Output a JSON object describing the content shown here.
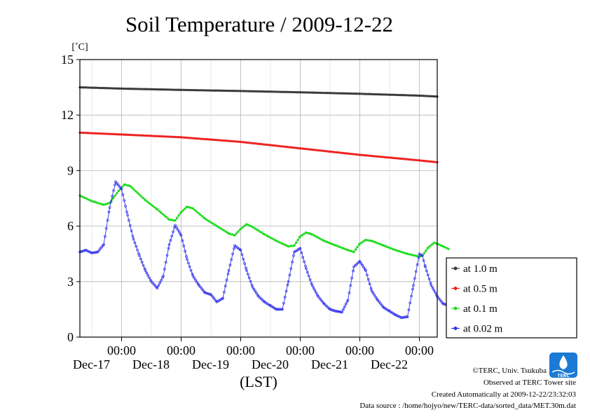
{
  "chart_data": {
    "type": "line",
    "title": "Soil Temperature / 2009-12-22",
    "y_unit": "[˚C]",
    "xlabel": "(LST)",
    "ylim": [
      0,
      15
    ],
    "yticks": [
      0,
      3,
      6,
      9,
      12,
      15
    ],
    "x_range_days": [
      -3.7,
      2.3
    ],
    "x_ticks": [
      {
        "time": "00:00",
        "date": "Dec-17",
        "day": -3
      },
      {
        "time": "00:00",
        "date": "Dec-18",
        "day": -2
      },
      {
        "time": "00:00",
        "date": "Dec-19",
        "day": -1
      },
      {
        "time": "00:00",
        "date": "Dec-20",
        "day": 0
      },
      {
        "time": "00:00",
        "date": "Dec-21",
        "day": 1
      },
      {
        "time": "00:00",
        "date": "Dec-22",
        "day": 2
      }
    ],
    "grid": true,
    "legend_position": "right",
    "series": [
      {
        "name": "at 1.0 m",
        "color": "#3a3a3a",
        "points": [
          [
            -3.7,
            13.5
          ],
          [
            -3.0,
            13.43
          ],
          [
            -2.0,
            13.36
          ],
          [
            -1.0,
            13.3
          ],
          [
            0.0,
            13.23
          ],
          [
            1.0,
            13.15
          ],
          [
            2.0,
            13.05
          ],
          [
            2.3,
            13.0
          ]
        ]
      },
      {
        "name": "at 0.5 m",
        "color": "#ee2222",
        "points": [
          [
            -3.7,
            11.05
          ],
          [
            -3.0,
            10.95
          ],
          [
            -2.0,
            10.8
          ],
          [
            -1.0,
            10.55
          ],
          [
            0.0,
            10.2
          ],
          [
            1.0,
            9.85
          ],
          [
            2.0,
            9.55
          ],
          [
            2.3,
            9.45
          ]
        ]
      },
      {
        "name": "at 0.1 m",
        "color": "#22dd22",
        "points": [
          [
            -3.7,
            7.65
          ],
          [
            -3.5,
            7.35
          ],
          [
            -3.3,
            7.15
          ],
          [
            -3.2,
            7.25
          ],
          [
            -3.05,
            7.9
          ],
          [
            -2.95,
            8.25
          ],
          [
            -2.85,
            8.15
          ],
          [
            -2.6,
            7.4
          ],
          [
            -2.4,
            6.9
          ],
          [
            -2.2,
            6.35
          ],
          [
            -2.1,
            6.3
          ],
          [
            -2.0,
            6.75
          ],
          [
            -1.9,
            7.05
          ],
          [
            -1.8,
            6.95
          ],
          [
            -1.6,
            6.4
          ],
          [
            -1.4,
            6.0
          ],
          [
            -1.2,
            5.6
          ],
          [
            -1.1,
            5.5
          ],
          [
            -1.0,
            5.85
          ],
          [
            -0.9,
            6.1
          ],
          [
            -0.8,
            5.95
          ],
          [
            -0.6,
            5.55
          ],
          [
            -0.4,
            5.2
          ],
          [
            -0.2,
            4.9
          ],
          [
            -0.1,
            4.95
          ],
          [
            0.0,
            5.45
          ],
          [
            0.1,
            5.65
          ],
          [
            0.2,
            5.55
          ],
          [
            0.4,
            5.2
          ],
          [
            0.6,
            4.95
          ],
          [
            0.8,
            4.7
          ],
          [
            0.9,
            4.6
          ],
          [
            1.0,
            5.05
          ],
          [
            1.1,
            5.25
          ],
          [
            1.2,
            5.2
          ],
          [
            1.4,
            4.95
          ],
          [
            1.6,
            4.7
          ],
          [
            1.8,
            4.5
          ],
          [
            2.0,
            4.35
          ],
          [
            2.05,
            4.4
          ],
          [
            2.15,
            4.85
          ],
          [
            2.25,
            5.1
          ],
          [
            2.3,
            5.05
          ],
          [
            2.4,
            4.9
          ],
          [
            2.5,
            4.75
          ]
        ]
      },
      {
        "name": "at 0.02 m",
        "color": "#3333ee",
        "points": [
          [
            -3.7,
            4.6
          ],
          [
            -3.6,
            4.7
          ],
          [
            -3.5,
            4.55
          ],
          [
            -3.4,
            4.6
          ],
          [
            -3.3,
            5.0
          ],
          [
            -3.2,
            7.0
          ],
          [
            -3.1,
            8.4
          ],
          [
            -3.0,
            8.0
          ],
          [
            -2.9,
            6.6
          ],
          [
            -2.8,
            5.3
          ],
          [
            -2.7,
            4.4
          ],
          [
            -2.6,
            3.6
          ],
          [
            -2.5,
            3.0
          ],
          [
            -2.4,
            2.65
          ],
          [
            -2.3,
            3.3
          ],
          [
            -2.2,
            5.0
          ],
          [
            -2.1,
            6.05
          ],
          [
            -2.0,
            5.5
          ],
          [
            -1.9,
            4.2
          ],
          [
            -1.8,
            3.3
          ],
          [
            -1.7,
            2.8
          ],
          [
            -1.6,
            2.4
          ],
          [
            -1.5,
            2.3
          ],
          [
            -1.4,
            1.9
          ],
          [
            -1.3,
            2.1
          ],
          [
            -1.2,
            3.6
          ],
          [
            -1.1,
            4.95
          ],
          [
            -1.0,
            4.7
          ],
          [
            -0.9,
            3.6
          ],
          [
            -0.8,
            2.7
          ],
          [
            -0.7,
            2.2
          ],
          [
            -0.6,
            1.9
          ],
          [
            -0.5,
            1.7
          ],
          [
            -0.4,
            1.5
          ],
          [
            -0.3,
            1.5
          ],
          [
            -0.2,
            3.0
          ],
          [
            -0.1,
            4.6
          ],
          [
            0.0,
            4.8
          ],
          [
            0.1,
            3.7
          ],
          [
            0.2,
            2.8
          ],
          [
            0.3,
            2.2
          ],
          [
            0.4,
            1.8
          ],
          [
            0.5,
            1.5
          ],
          [
            0.6,
            1.4
          ],
          [
            0.7,
            1.35
          ],
          [
            0.8,
            2.0
          ],
          [
            0.9,
            3.8
          ],
          [
            1.0,
            4.1
          ],
          [
            1.1,
            3.6
          ],
          [
            1.2,
            2.5
          ],
          [
            1.3,
            2.0
          ],
          [
            1.4,
            1.6
          ],
          [
            1.5,
            1.4
          ],
          [
            1.6,
            1.2
          ],
          [
            1.7,
            1.05
          ],
          [
            1.8,
            1.1
          ],
          [
            1.9,
            2.8
          ],
          [
            2.0,
            4.5
          ],
          [
            2.05,
            4.4
          ],
          [
            2.1,
            3.8
          ],
          [
            2.2,
            2.8
          ],
          [
            2.3,
            2.2
          ],
          [
            2.4,
            1.8
          ],
          [
            2.5,
            1.7
          ]
        ]
      }
    ]
  },
  "logo": {
    "text": "TERC"
  },
  "credits": {
    "line1": "©TERC, Univ. Tsukuba",
    "line2": "Observed at TERC Tower site",
    "line3": "Created Automatically at 2009-12-22/23:32:03",
    "line4": "Data source : /home/hojyo/new/TERC-data/sorted_data/MET.30m.dat"
  }
}
